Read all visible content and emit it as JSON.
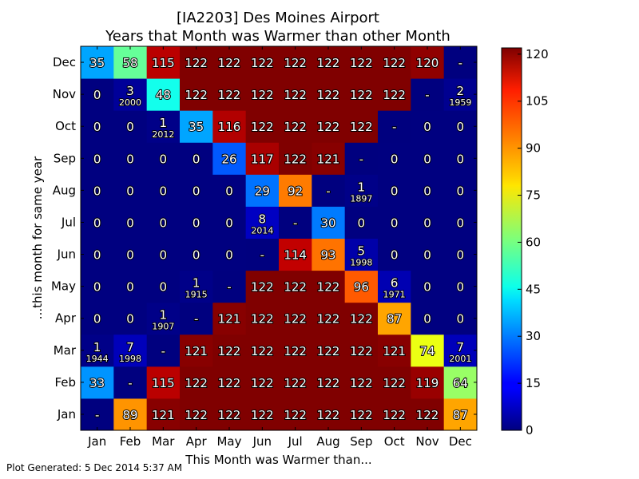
{
  "chart_data": {
    "type": "heatmap",
    "title_line1": "[IA2203] Des Moines Airport",
    "title_line2": "Years that Month was Warmer than other Month",
    "xlabel": "This Month was Warmer than...",
    "ylabel": "...this month for same year",
    "x_categories": [
      "Jan",
      "Feb",
      "Mar",
      "Apr",
      "May",
      "Jun",
      "Jul",
      "Aug",
      "Sep",
      "Oct",
      "Nov",
      "Dec"
    ],
    "y_categories": [
      "Jan",
      "Feb",
      "Mar",
      "Apr",
      "May",
      "Jun",
      "Jul",
      "Aug",
      "Sep",
      "Oct",
      "Nov",
      "Dec"
    ],
    "rows": [
      {
        "month": "Jan",
        "values": [
          null,
          89,
          121,
          122,
          122,
          122,
          122,
          122,
          122,
          122,
          122,
          87
        ],
        "years": [
          "",
          "",
          "",
          "",
          "",
          "",
          "",
          "",
          "",
          "",
          "",
          ""
        ]
      },
      {
        "month": "Feb",
        "values": [
          33,
          null,
          115,
          122,
          122,
          122,
          122,
          122,
          122,
          122,
          119,
          64
        ],
        "years": [
          "",
          "",
          "",
          "",
          "",
          "",
          "",
          "",
          "",
          "",
          "",
          ""
        ]
      },
      {
        "month": "Mar",
        "values": [
          1,
          7,
          null,
          121,
          122,
          122,
          122,
          122,
          122,
          121,
          74,
          7
        ],
        "years": [
          "1944",
          "1998",
          "",
          "",
          "",
          "",
          "",
          "",
          "",
          "",
          "",
          "2001"
        ]
      },
      {
        "month": "Apr",
        "values": [
          0,
          0,
          1,
          null,
          121,
          122,
          122,
          122,
          122,
          87,
          0,
          0
        ],
        "years": [
          "",
          "",
          "1907",
          "",
          "",
          "",
          "",
          "",
          "",
          "",
          "",
          ""
        ]
      },
      {
        "month": "May",
        "values": [
          0,
          0,
          0,
          1,
          null,
          122,
          122,
          122,
          96,
          6,
          0,
          0
        ],
        "years": [
          "",
          "",
          "",
          "1915",
          "",
          "",
          "",
          "",
          "",
          "1971",
          "",
          ""
        ]
      },
      {
        "month": "Jun",
        "values": [
          0,
          0,
          0,
          0,
          0,
          null,
          114,
          93,
          5,
          0,
          0,
          0
        ],
        "years": [
          "",
          "",
          "",
          "",
          "",
          "",
          "",
          "",
          "1998",
          "",
          "",
          ""
        ]
      },
      {
        "month": "Jul",
        "values": [
          0,
          0,
          0,
          0,
          0,
          8,
          null,
          30,
          0,
          0,
          0,
          0
        ],
        "years": [
          "",
          "",
          "",
          "",
          "",
          "2014",
          "",
          "",
          "",
          "",
          "",
          ""
        ]
      },
      {
        "month": "Aug",
        "values": [
          0,
          0,
          0,
          0,
          0,
          29,
          92,
          null,
          1,
          0,
          0,
          0
        ],
        "years": [
          "",
          "",
          "",
          "",
          "",
          "",
          "",
          "",
          "1897",
          "",
          "",
          ""
        ]
      },
      {
        "month": "Sep",
        "values": [
          0,
          0,
          0,
          0,
          26,
          117,
          122,
          121,
          null,
          0,
          0,
          0
        ],
        "years": [
          "",
          "",
          "",
          "",
          "",
          "",
          "",
          "",
          "",
          "",
          "",
          ""
        ]
      },
      {
        "month": "Oct",
        "values": [
          0,
          0,
          1,
          35,
          116,
          122,
          122,
          122,
          122,
          null,
          0,
          0
        ],
        "years": [
          "",
          "",
          "2012",
          "",
          "",
          "",
          "",
          "",
          "",
          "",
          "",
          ""
        ]
      },
      {
        "month": "Nov",
        "values": [
          0,
          3,
          48,
          122,
          122,
          122,
          122,
          122,
          122,
          122,
          null,
          2
        ],
        "years": [
          "",
          "2000",
          "",
          "",
          "",
          "",
          "",
          "",
          "",
          "",
          "",
          "1959"
        ]
      },
      {
        "month": "Dec",
        "values": [
          35,
          58,
          115,
          122,
          122,
          122,
          122,
          122,
          122,
          122,
          120,
          null
        ],
        "years": [
          "",
          "",
          "",
          "",
          "",
          "",
          "",
          "",
          "",
          "",
          "",
          ""
        ]
      }
    ],
    "missing_label": "-",
    "colorbar": {
      "min": 0,
      "max": 122,
      "ticks": [
        "0",
        "15",
        "30",
        "45",
        "60",
        "75",
        "90",
        "105",
        "120"
      ],
      "colormap": "jet"
    }
  },
  "footer": "Plot Generated: 5 Dec 2014 5:37 AM"
}
